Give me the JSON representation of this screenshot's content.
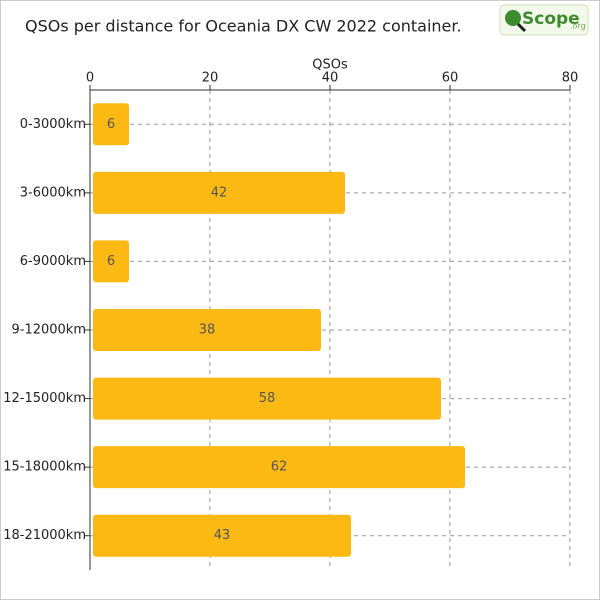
{
  "chart_data": {
    "type": "hbar",
    "title": "QSOs per distance for Oceania DX CW 2022 container.",
    "x_label": "QSOs",
    "categories": [
      "0-3000km",
      "3-6000km",
      "6-9000km",
      "9-12000km",
      "12-15000km",
      "15-18000km",
      "18-21000km"
    ],
    "values": [
      6,
      42,
      6,
      38,
      58,
      62,
      43
    ],
    "color": "#fdb913",
    "xlim": [
      0,
      80
    ],
    "xticks": [
      0,
      20,
      40,
      60,
      80
    ],
    "grid": true
  },
  "logo": {
    "name": "Scope",
    "suffix": ".org"
  }
}
